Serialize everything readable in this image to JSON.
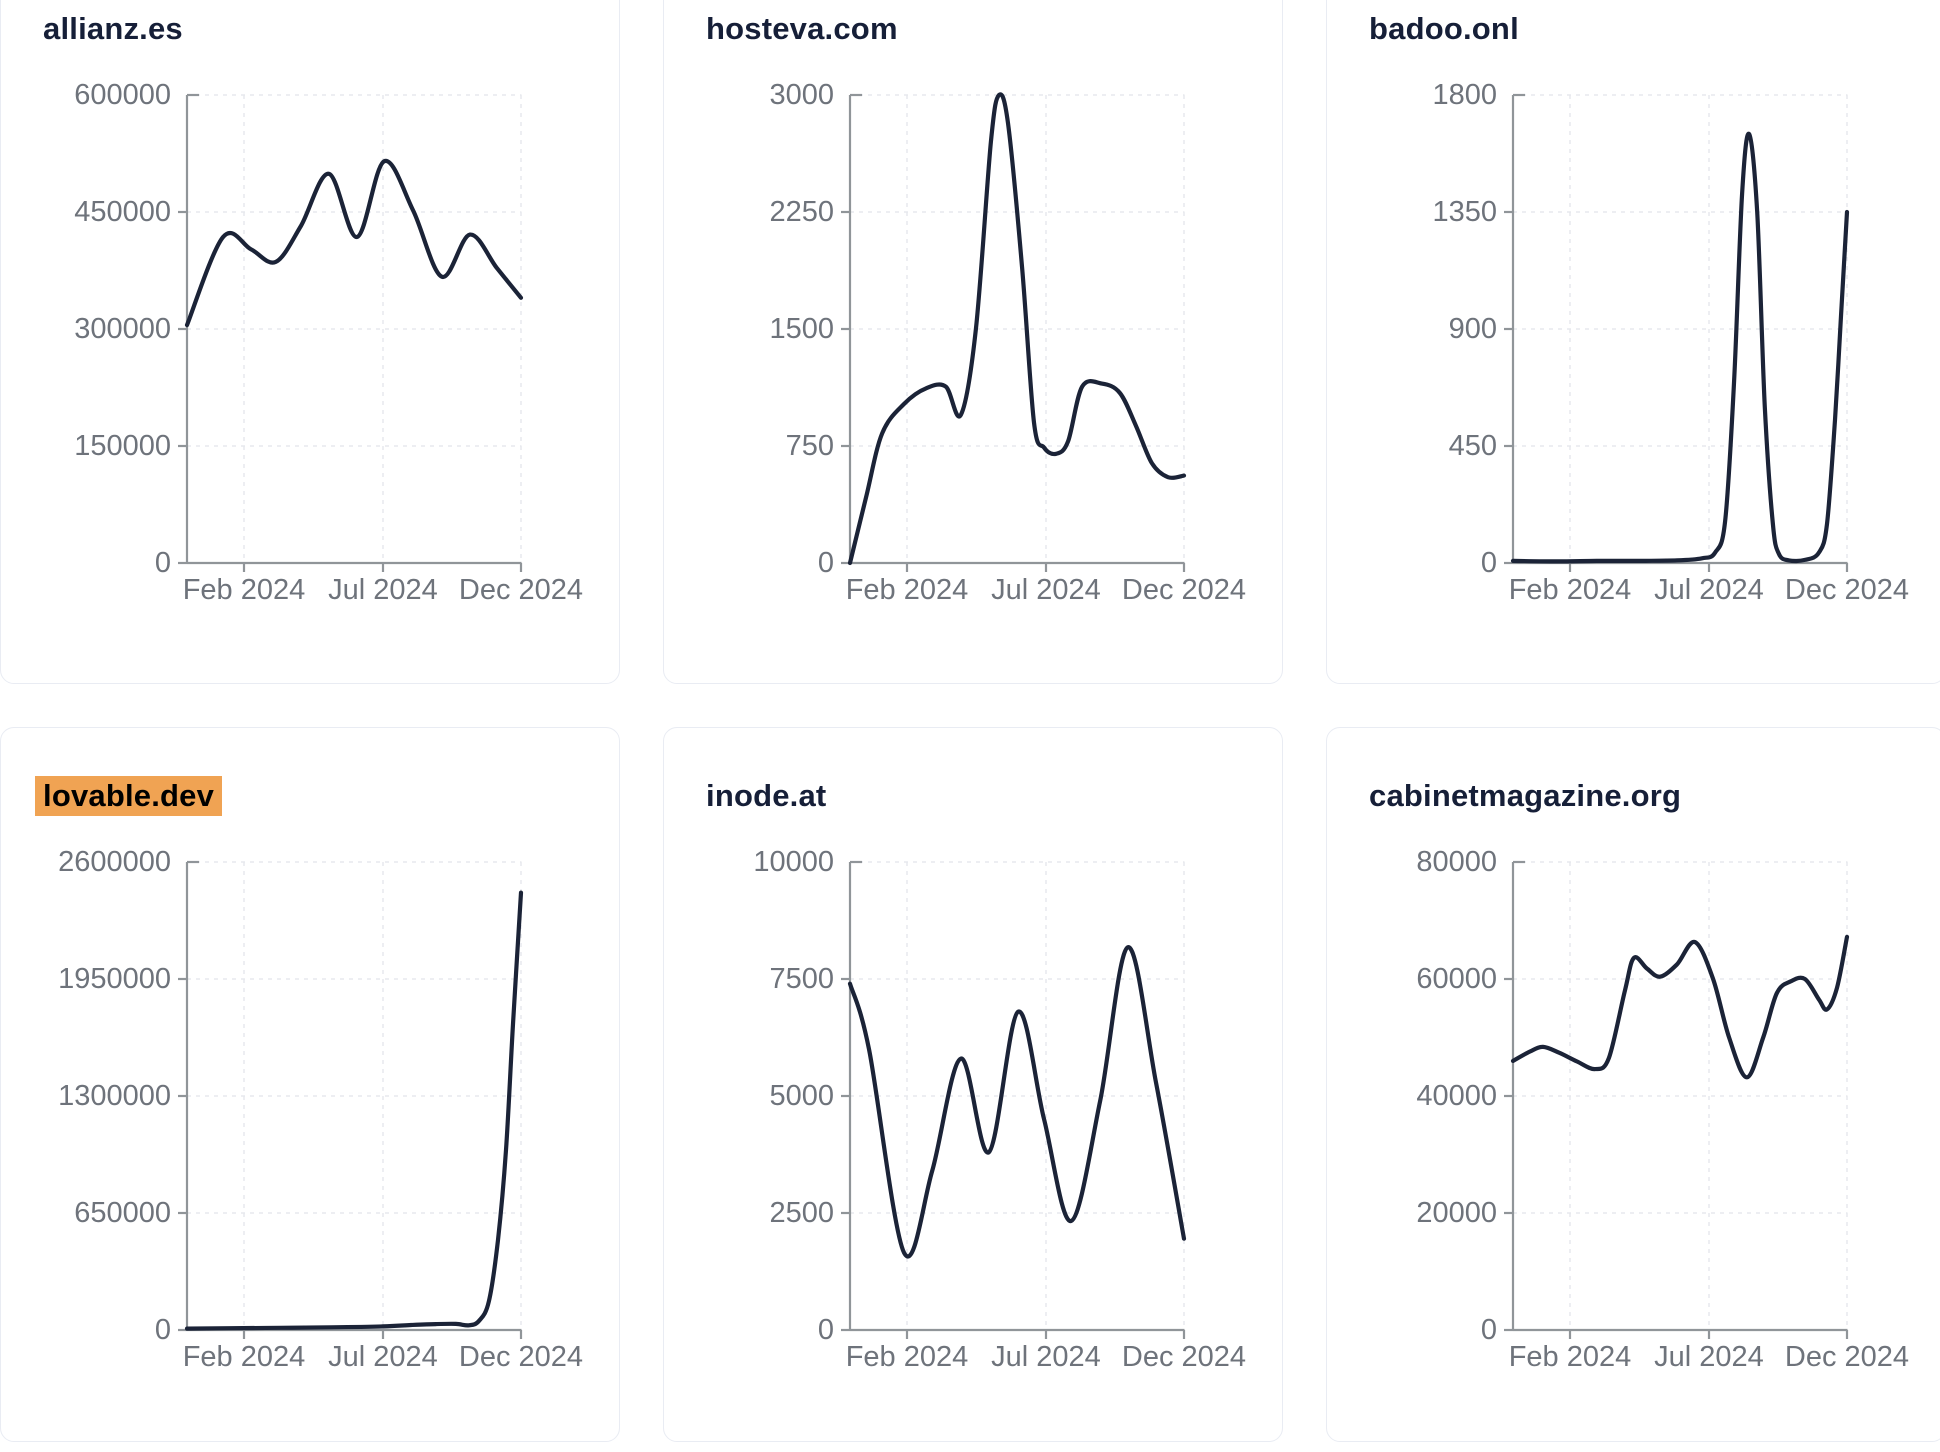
{
  "page": {
    "background": "#ffffff",
    "layout": "3x2-grid-of-line-chart-cards"
  },
  "style": {
    "line_color": "#1b2337",
    "axis_color": "#909599",
    "grid_color": "#e7e9ed",
    "tick_label_color": "#6e737b",
    "title_color": "#161f38",
    "title_highlight_color": "#f0a353",
    "title_highlight_text_color": "#000000",
    "card_border_color": "#e9ecf3"
  },
  "chart_data": [
    {
      "type": "line",
      "title": "allianz.es",
      "title_highlighted": false,
      "x_tick_labels": [
        "Feb 2024",
        "Jul 2024",
        "Dec 2024"
      ],
      "y_tick_labels": [
        "600000",
        "450000",
        "300000",
        "150000",
        "0"
      ],
      "ylim": [
        0,
        600000
      ],
      "grid": true,
      "points": [
        [
          0,
          305000
        ],
        [
          0.108,
          418000
        ],
        [
          0.192,
          402000
        ],
        [
          0.266,
          386000
        ],
        [
          0.341,
          432000
        ],
        [
          0.425,
          499000
        ],
        [
          0.509,
          418000
        ],
        [
          0.59,
          515000
        ],
        [
          0.677,
          452000
        ],
        [
          0.763,
          367000
        ],
        [
          0.847,
          421000
        ],
        [
          0.928,
          378000
        ],
        [
          1,
          340000
        ]
      ]
    },
    {
      "type": "line",
      "title": "hosteva.com",
      "title_highlighted": false,
      "x_tick_labels": [
        "Feb 2024",
        "Jul 2024",
        "Dec 2024"
      ],
      "y_tick_labels": [
        "3000",
        "2250",
        "1500",
        "750",
        "0"
      ],
      "ylim": [
        0,
        3000
      ],
      "grid": true,
      "points": [
        [
          0,
          0
        ],
        [
          0.048,
          420
        ],
        [
          0.096,
          830
        ],
        [
          0.162,
          1020
        ],
        [
          0.228,
          1120
        ],
        [
          0.287,
          1130
        ],
        [
          0.332,
          950
        ],
        [
          0.377,
          1500
        ],
        [
          0.422,
          2700
        ],
        [
          0.446,
          3000
        ],
        [
          0.473,
          2820
        ],
        [
          0.515,
          1900
        ],
        [
          0.551,
          900
        ],
        [
          0.581,
          740
        ],
        [
          0.617,
          700
        ],
        [
          0.653,
          780
        ],
        [
          0.695,
          1130
        ],
        [
          0.754,
          1150
        ],
        [
          0.808,
          1090
        ],
        [
          0.856,
          880
        ],
        [
          0.904,
          640
        ],
        [
          0.952,
          550
        ],
        [
          1,
          560
        ]
      ]
    },
    {
      "type": "line",
      "title": "badoo.onl",
      "title_highlighted": false,
      "x_tick_labels": [
        "Feb 2024",
        "Jul 2024",
        "Dec 2024"
      ],
      "y_tick_labels": [
        "1800",
        "1350",
        "900",
        "450",
        "0"
      ],
      "ylim": [
        0,
        1800
      ],
      "grid": true,
      "points": [
        [
          0,
          8
        ],
        [
          0.132,
          6
        ],
        [
          0.251,
          8
        ],
        [
          0.371,
          8
        ],
        [
          0.491,
          10
        ],
        [
          0.566,
          18
        ],
        [
          0.605,
          40
        ],
        [
          0.635,
          160
        ],
        [
          0.662,
          700
        ],
        [
          0.686,
          1420
        ],
        [
          0.707,
          1650
        ],
        [
          0.731,
          1350
        ],
        [
          0.754,
          600
        ],
        [
          0.778,
          150
        ],
        [
          0.796,
          35
        ],
        [
          0.826,
          10
        ],
        [
          0.874,
          12
        ],
        [
          0.916,
          40
        ],
        [
          0.94,
          150
        ],
        [
          0.964,
          550
        ],
        [
          0.982,
          950
        ],
        [
          1,
          1350
        ]
      ]
    },
    {
      "type": "line",
      "title": "lovable.dev",
      "title_highlighted": true,
      "x_tick_labels": [
        "Feb 2024",
        "Jul 2024",
        "Dec 2024"
      ],
      "y_tick_labels": [
        "2600000",
        "1950000",
        "1300000",
        "650000",
        "0"
      ],
      "ylim": [
        0,
        2600000
      ],
      "grid": true,
      "points": [
        [
          0,
          8000
        ],
        [
          0.132,
          10000
        ],
        [
          0.281,
          12000
        ],
        [
          0.431,
          15000
        ],
        [
          0.587,
          20000
        ],
        [
          0.671,
          28000
        ],
        [
          0.745,
          33000
        ],
        [
          0.805,
          34000
        ],
        [
          0.844,
          26000
        ],
        [
          0.874,
          50000
        ],
        [
          0.904,
          160000
        ],
        [
          0.931,
          500000
        ],
        [
          0.955,
          1000000
        ],
        [
          0.976,
          1700000
        ],
        [
          1,
          2430000
        ]
      ]
    },
    {
      "type": "line",
      "title": "inode.at",
      "title_highlighted": false,
      "x_tick_labels": [
        "Feb 2024",
        "Jul 2024",
        "Dec 2024"
      ],
      "y_tick_labels": [
        "10000",
        "7500",
        "5000",
        "2500",
        "0"
      ],
      "ylim": [
        0,
        10000
      ],
      "grid": true,
      "points": [
        [
          0,
          7400
        ],
        [
          0.057,
          6000
        ],
        [
          0.162,
          1650
        ],
        [
          0.246,
          3400
        ],
        [
          0.332,
          5800
        ],
        [
          0.416,
          3800
        ],
        [
          0.503,
          6800
        ],
        [
          0.581,
          4500
        ],
        [
          0.662,
          2330
        ],
        [
          0.749,
          4900
        ],
        [
          0.832,
          8180
        ],
        [
          0.916,
          5300
        ],
        [
          1,
          1950
        ]
      ]
    },
    {
      "type": "line",
      "title": "cabinetmagazine.org",
      "title_highlighted": false,
      "x_tick_labels": [
        "Feb 2024",
        "Jul 2024",
        "Dec 2024"
      ],
      "y_tick_labels": [
        "80000",
        "60000",
        "40000",
        "20000",
        "0"
      ],
      "ylim": [
        0,
        80000
      ],
      "grid": true,
      "points": [
        [
          0,
          46000
        ],
        [
          0.051,
          47600
        ],
        [
          0.09,
          48400
        ],
        [
          0.138,
          47400
        ],
        [
          0.192,
          45900
        ],
        [
          0.246,
          44600
        ],
        [
          0.287,
          46500
        ],
        [
          0.335,
          58000
        ],
        [
          0.362,
          63600
        ],
        [
          0.401,
          61800
        ],
        [
          0.44,
          60400
        ],
        [
          0.491,
          62500
        ],
        [
          0.545,
          66300
        ],
        [
          0.599,
          60000
        ],
        [
          0.647,
          50000
        ],
        [
          0.7,
          43200
        ],
        [
          0.749,
          50000
        ],
        [
          0.79,
          57600
        ],
        [
          0.832,
          59600
        ],
        [
          0.874,
          60000
        ],
        [
          0.916,
          56500
        ],
        [
          0.94,
          54800
        ],
        [
          0.97,
          58500
        ],
        [
          1,
          67200
        ]
      ]
    }
  ]
}
